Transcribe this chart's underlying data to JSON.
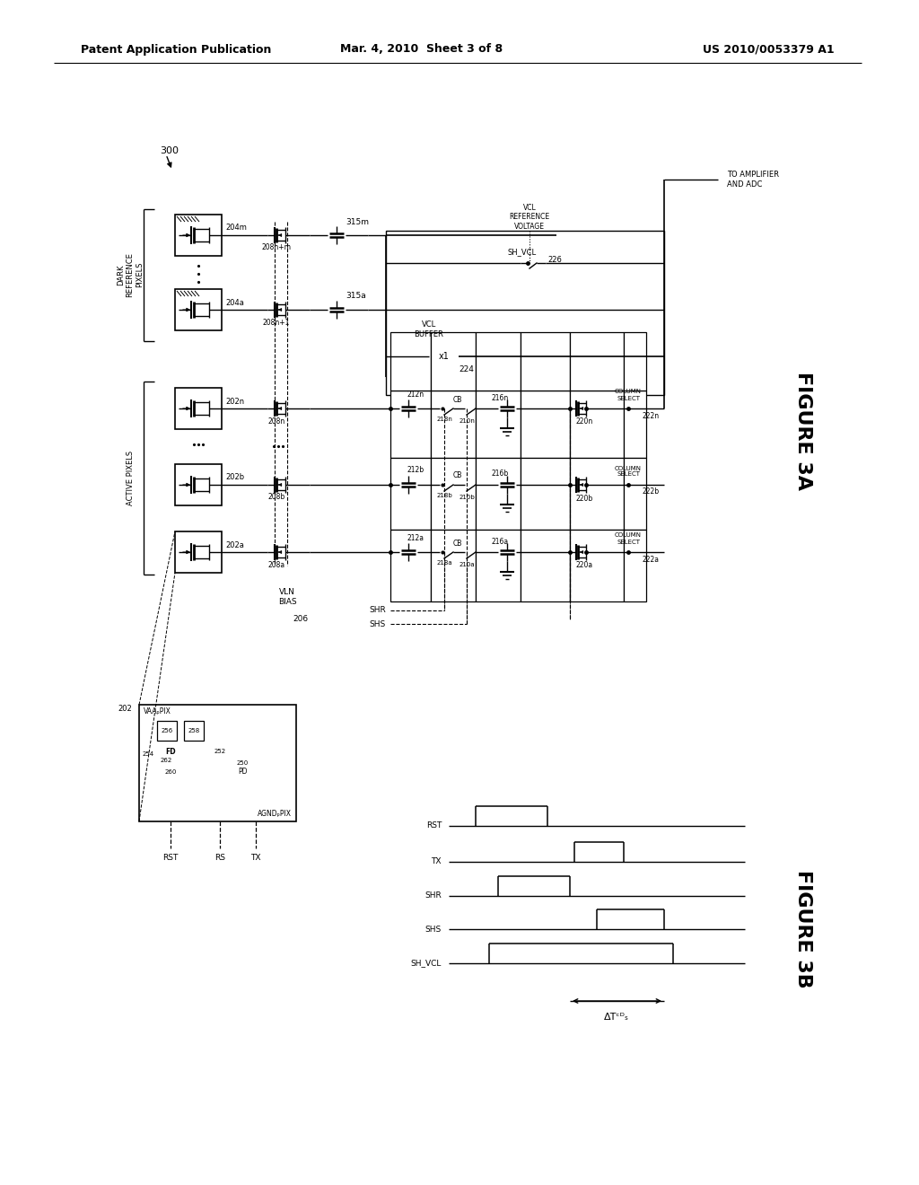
{
  "title_left": "Patent Application Publication",
  "title_mid": "Mar. 4, 2010  Sheet 3 of 8",
  "title_right": "US 2010/0053379 A1",
  "fig_label_A": "FIGURE 3A",
  "fig_label_B": "FIGURE 3B",
  "background": "#ffffff"
}
